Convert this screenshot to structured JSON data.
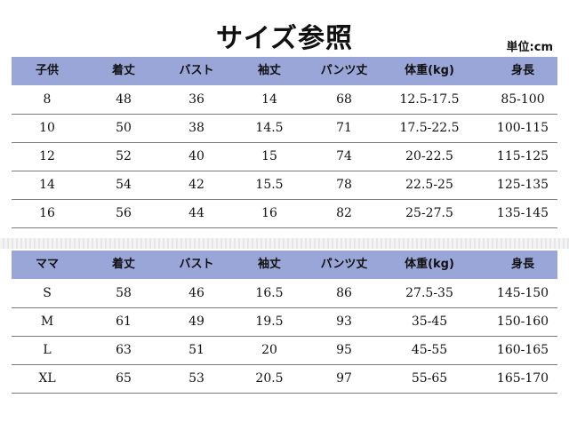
{
  "title": "サイズ参照",
  "unit": "単位:cm",
  "kids": {
    "headers": [
      "子供",
      "着丈",
      "バスト",
      "袖丈",
      "パンツ丈",
      "体重(kg)",
      "身長"
    ],
    "rows": [
      [
        "8",
        "48",
        "36",
        "14",
        "68",
        "12.5-17.5",
        "85-100"
      ],
      [
        "10",
        "50",
        "38",
        "14.5",
        "71",
        "17.5-22.5",
        "100-115"
      ],
      [
        "12",
        "52",
        "40",
        "15",
        "74",
        "20-22.5",
        "115-125"
      ],
      [
        "14",
        "54",
        "42",
        "15.5",
        "78",
        "22.5-25",
        "125-135"
      ],
      [
        "16",
        "56",
        "44",
        "16",
        "82",
        "25-27.5",
        "135-145"
      ]
    ]
  },
  "mom": {
    "headers": [
      "ママ",
      "着丈",
      "バスト",
      "袖丈",
      "パンツ丈",
      "体重(kg)",
      "身長"
    ],
    "rows": [
      [
        "S",
        "58",
        "46",
        "16.5",
        "86",
        "27.5-35",
        "145-150"
      ],
      [
        "M",
        "61",
        "49",
        "19.5",
        "93",
        "35-45",
        "150-160"
      ],
      [
        "L",
        "63",
        "51",
        "20",
        "95",
        "45-55",
        "160-165"
      ],
      [
        "XL",
        "65",
        "53",
        "20.5",
        "97",
        "55-65",
        "165-170"
      ]
    ]
  },
  "colors": {
    "header_bg": "#9aa6d8",
    "row_line": "#7a7a7a"
  }
}
